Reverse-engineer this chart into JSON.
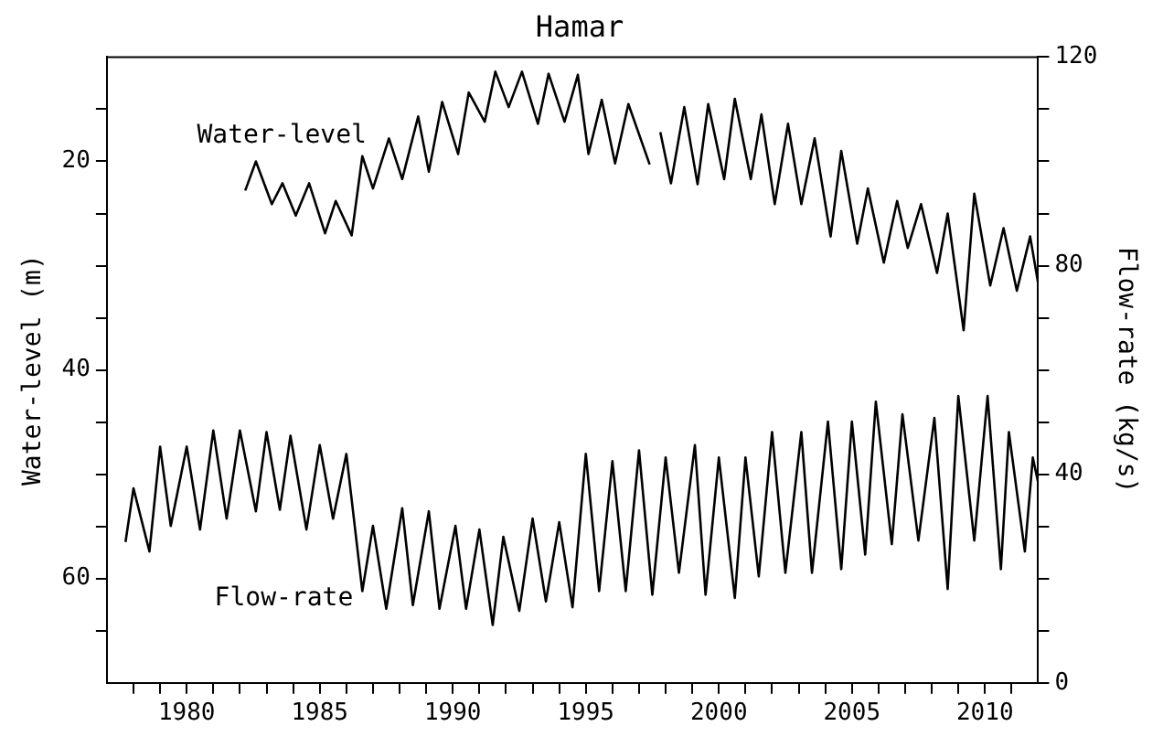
{
  "chart_data": {
    "type": "line",
    "title": "Hamar",
    "ylabel": "Water-level (m)",
    "y2label": "Flow-rate (kg/s)",
    "xlim": [
      1977,
      2012
    ],
    "xticks": [
      {
        "value": 1978,
        "label": null
      },
      {
        "value": 1979,
        "label": null
      },
      1980,
      {
        "value": 1981,
        "label": null
      },
      {
        "value": 1982,
        "label": null
      },
      {
        "value": 1983,
        "label": null
      },
      {
        "value": 1984,
        "label": null
      },
      1985,
      {
        "value": 1986,
        "label": null
      },
      {
        "value": 1987,
        "label": null
      },
      {
        "value": 1988,
        "label": null
      },
      {
        "value": 1989,
        "label": null
      },
      1990,
      {
        "value": 1991,
        "label": null
      },
      {
        "value": 1992,
        "label": null
      },
      {
        "value": 1993,
        "label": null
      },
      {
        "value": 1994,
        "label": null
      },
      1995,
      {
        "value": 1996,
        "label": null
      },
      {
        "value": 1997,
        "label": null
      },
      {
        "value": 1998,
        "label": null
      },
      {
        "value": 1999,
        "label": null
      },
      2000,
      {
        "value": 2001,
        "label": null
      },
      {
        "value": 2002,
        "label": null
      },
      {
        "value": 2003,
        "label": null
      },
      {
        "value": 2004,
        "label": null
      },
      2005,
      {
        "value": 2006,
        "label": null
      },
      {
        "value": 2007,
        "label": null
      },
      {
        "value": 2008,
        "label": null
      },
      {
        "value": 2009,
        "label": null
      },
      2010,
      {
        "value": 2011,
        "label": null
      }
    ],
    "ylim": [
      70,
      10
    ],
    "yticks": [
      {
        "value": 15,
        "label": null
      },
      20,
      {
        "value": 25,
        "label": null
      },
      {
        "value": 30,
        "label": null
      },
      {
        "value": 35,
        "label": null
      },
      40,
      {
        "value": 45,
        "label": null
      },
      {
        "value": 50,
        "label": null
      },
      {
        "value": 55,
        "label": null
      },
      60,
      {
        "value": 65,
        "label": null
      }
    ],
    "y2lim": [
      0,
      120
    ],
    "y2ticks": [
      0,
      {
        "value": 10,
        "label": null
      },
      {
        "value": 20,
        "label": null
      },
      {
        "value": 30,
        "label": null
      },
      40,
      {
        "value": 50,
        "label": null
      },
      {
        "value": 60,
        "label": null
      },
      {
        "value": 70,
        "label": null
      },
      80,
      {
        "value": 90,
        "label": null
      },
      {
        "value": 100,
        "label": null
      },
      {
        "value": 110,
        "label": null
      },
      120
    ],
    "grid": false,
    "legend": false,
    "marker": "none",
    "line_style": "solid",
    "series": [
      {
        "name": "Water-level",
        "color": "#000000",
        "x": [
          1982.2,
          1982.6,
          1983.2,
          1983.6,
          1984.1,
          1984.6,
          1985.2,
          1985.6,
          1986.2,
          1986.6,
          1987.0,
          1987.6,
          1988.1,
          1988.7,
          1989.1,
          1989.6,
          1990.2,
          1990.6,
          1991.2,
          1991.6,
          1992.1,
          1992.6,
          1993.2,
          1993.6,
          1994.2,
          1994.7,
          1995.1,
          1995.6,
          1996.1,
          1996.6,
          1997.4,
          1997.5,
          1997.8,
          1998.2,
          1998.7,
          1999.2,
          1999.6,
          2000.2,
          2000.6,
          2001.2,
          2001.6,
          2002.1,
          2002.6,
          2003.1,
          2003.6,
          2004.2,
          2004.6,
          2005.2,
          2005.6,
          2006.2,
          2006.7,
          2007.1,
          2007.6,
          2008.2,
          2008.6,
          2009.2,
          2009.6,
          2010.2,
          2010.7,
          2011.2,
          2011.7,
          2012.0
        ],
        "values": [
          22.8,
          20.0,
          24.1,
          22.1,
          25.2,
          22.1,
          26.9,
          23.8,
          27.1,
          19.5,
          22.6,
          17.8,
          21.7,
          15.7,
          21.0,
          14.3,
          19.3,
          13.4,
          16.2,
          11.4,
          14.8,
          11.4,
          16.4,
          11.6,
          16.2,
          11.7,
          19.3,
          14.1,
          20.2,
          14.5,
          20.3,
          null,
          17.2,
          22.1,
          14.8,
          22.2,
          14.5,
          21.7,
          14.0,
          21.7,
          15.5,
          24.1,
          16.4,
          24.1,
          17.8,
          27.2,
          19.0,
          27.9,
          22.6,
          29.7,
          23.8,
          28.3,
          24.1,
          30.7,
          25.0,
          36.2,
          23.1,
          31.9,
          26.4,
          32.4,
          27.2,
          31.7
        ]
      },
      {
        "name": "Flow-rate",
        "color": "#000000",
        "axis": "y2",
        "x": [
          1977.7,
          1978.0,
          1978.6,
          1979.0,
          1979.4,
          1980.0,
          1980.5,
          1981.0,
          1981.5,
          1982.0,
          1982.6,
          1983.0,
          1983.5,
          1983.9,
          1984.5,
          1985.0,
          1985.5,
          1986.0,
          1986.6,
          1987.0,
          1987.5,
          1988.1,
          1988.5,
          1989.1,
          1989.5,
          1990.1,
          1990.5,
          1991.0,
          1991.5,
          1991.9,
          1992.5,
          1993.0,
          1993.5,
          1994.0,
          1994.5,
          1995.0,
          1995.5,
          1996.0,
          1996.5,
          1997.0,
          1997.5,
          1998.0,
          1998.5,
          1999.1,
          1999.5,
          2000.0,
          2000.6,
          2001.0,
          2001.5,
          2002.0,
          2002.5,
          2003.1,
          2003.5,
          2004.1,
          2004.6,
          2005.0,
          2005.5,
          2005.9,
          2006.5,
          2006.9,
          2007.5,
          2008.1,
          2008.6,
          2009.0,
          2009.6,
          2010.1,
          2010.6,
          2010.9,
          2011.5,
          2011.8,
          2012.0
        ],
        "values": [
          27.0,
          37.3,
          25.2,
          45.3,
          30.1,
          45.3,
          29.4,
          48.4,
          31.5,
          48.4,
          32.9,
          48.1,
          33.2,
          47.4,
          29.4,
          45.6,
          31.5,
          43.9,
          17.6,
          30.1,
          14.2,
          33.5,
          14.9,
          32.9,
          14.2,
          30.1,
          14.2,
          29.4,
          11.1,
          28.0,
          13.8,
          31.5,
          15.6,
          30.8,
          14.5,
          43.9,
          17.6,
          42.5,
          17.6,
          44.6,
          16.9,
          43.2,
          21.1,
          45.6,
          16.9,
          43.2,
          16.3,
          43.2,
          20.4,
          48.1,
          21.1,
          48.1,
          21.1,
          50.1,
          21.8,
          50.1,
          24.6,
          53.9,
          26.6,
          51.5,
          27.3,
          50.8,
          18.0,
          55.0,
          27.3,
          55.0,
          21.8,
          48.1,
          25.2,
          43.2,
          38.4
        ]
      }
    ]
  }
}
